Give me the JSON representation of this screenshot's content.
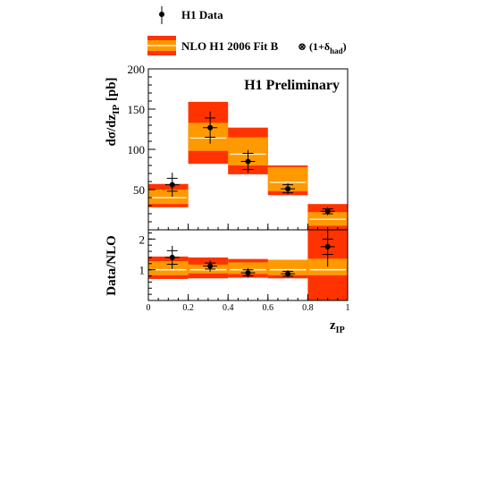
{
  "colors": {
    "outer_band": "#ff3300",
    "inner_band": "#ff9900",
    "central_line": "#ffeecc",
    "data": "#000000",
    "unity_line": "#ffffff"
  },
  "legend": {
    "data_label": "H1 Data",
    "nlo_label": "NLO H1 2006 Fit B",
    "nlo_correction": "⊗ (1+δ",
    "nlo_correction_sub": "had",
    "nlo_correction_close": ")"
  },
  "chart_data": [
    {
      "type": "bar",
      "panel": "top",
      "annotation": "H1 Preliminary",
      "ylabel_main": "dσ/dz",
      "ylabel_sub": "IP",
      "ylabel_unit": " [pb]",
      "xlim": [
        0,
        1
      ],
      "ylim": [
        0,
        200
      ],
      "y_ticks": [
        "50",
        "100",
        "150",
        "200"
      ],
      "y_tick_values": [
        50,
        100,
        150,
        200
      ],
      "bins": [
        [
          0,
          0.2
        ],
        [
          0.2,
          0.4
        ],
        [
          0.4,
          0.6
        ],
        [
          0.6,
          0.8
        ],
        [
          0.8,
          1.0
        ]
      ],
      "series": [
        {
          "name": "NLO H1 2006 Fit B",
          "central": [
            40,
            114,
            94,
            59,
            13
          ],
          "inner_band": [
            [
              32,
              50
            ],
            [
              98,
              133
            ],
            [
              80,
              115
            ],
            [
              48,
              78
            ],
            [
              5,
              22
            ]
          ],
          "outer_band": [
            [
              28,
              57
            ],
            [
              82,
              159
            ],
            [
              69,
              127
            ],
            [
              43,
              80
            ],
            [
              0,
              32
            ]
          ]
        },
        {
          "name": "H1 Data",
          "x": [
            0.12,
            0.31,
            0.5,
            0.7,
            0.9
          ],
          "values": [
            56,
            127,
            85,
            51,
            23
          ],
          "stat_err": [
            8,
            12,
            10,
            5,
            3
          ],
          "tot_err": [
            15,
            20,
            14,
            7,
            5
          ]
        }
      ]
    },
    {
      "type": "bar",
      "panel": "ratio",
      "ylabel": "Data/NLO",
      "xlabel_main": "z",
      "xlabel_sub": "IP",
      "xlim": [
        0,
        1
      ],
      "ylim": [
        0,
        2.3
      ],
      "x_ticks": [
        "0",
        "0.2",
        "0.4",
        "0.6",
        "0.8",
        "1"
      ],
      "x_tick_values": [
        0,
        0.2,
        0.4,
        0.6,
        0.8,
        1.0
      ],
      "y_ticks": [
        "1",
        "2"
      ],
      "y_tick_values": [
        1,
        2
      ],
      "bins": [
        [
          0,
          0.2
        ],
        [
          0.2,
          0.4
        ],
        [
          0.4,
          0.6
        ],
        [
          0.6,
          0.8
        ],
        [
          0.8,
          1.0
        ]
      ],
      "series": [
        {
          "name": "NLO H1 2006 Fit B",
          "central": [
            1,
            1,
            1,
            1,
            1
          ],
          "inner_band": [
            [
              0.82,
              1.28
            ],
            [
              0.88,
              1.17
            ],
            [
              0.86,
              1.24
            ],
            [
              0.82,
              1.32
            ],
            [
              0.82,
              1.36
            ]
          ],
          "outer_band": [
            [
              0.7,
              1.43
            ],
            [
              0.72,
              1.4
            ],
            [
              0.74,
              1.35
            ],
            [
              0.72,
              1.32
            ],
            [
              0.0,
              2.3
            ]
          ]
        },
        {
          "name": "H1 Data",
          "x": [
            0.12,
            0.31,
            0.5,
            0.7,
            0.9
          ],
          "values": [
            1.4,
            1.12,
            0.9,
            0.87,
            1.75
          ],
          "stat_err": [
            0.22,
            0.1,
            0.1,
            0.08,
            0.25
          ],
          "tot_err": [
            0.38,
            0.18,
            0.15,
            0.12,
            0.65
          ]
        }
      ]
    }
  ]
}
